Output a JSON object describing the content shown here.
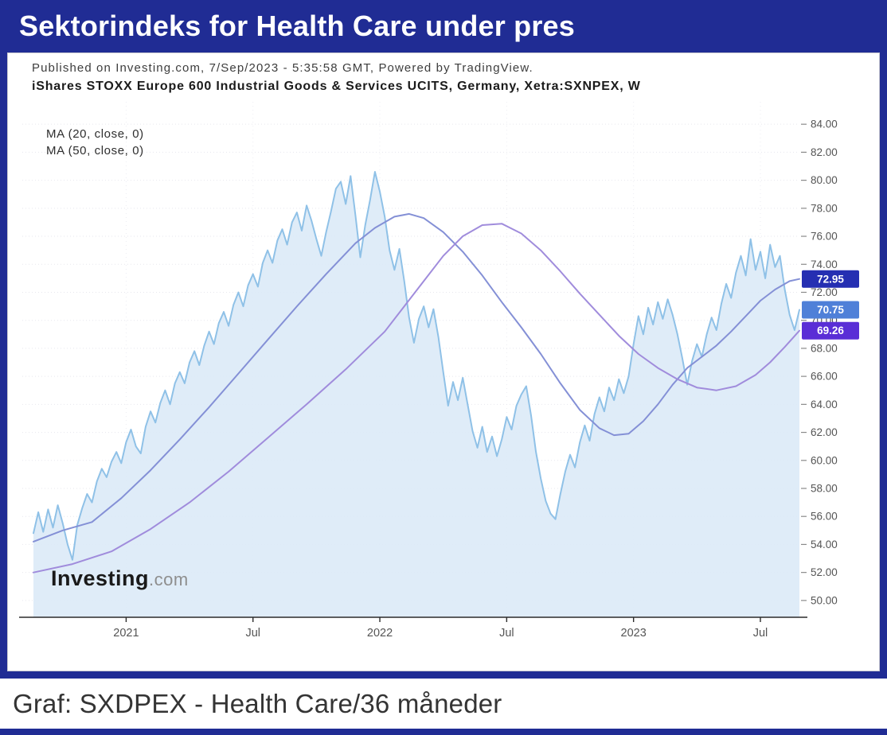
{
  "title_bar": {
    "title": "Sektorindeks for Health Care under pres"
  },
  "chart_header": {
    "published_line": "Published on Investing.com, 7/Sep/2023 - 5:35:58 GMT, Powered by TradingView.",
    "instrument_line": "iShares STOXX Europe 600 Industrial Goods & Services UCITS, Germany, Xetra:SXNPEX, W",
    "ma_legend": [
      "MA (20, close, 0)",
      "MA (50, close, 0)"
    ]
  },
  "watermark": {
    "bold": "Investing",
    "suffix": ".com"
  },
  "caption": "Graf: SXDPEX - Health Care/36 måneder",
  "accent_color": "#202c94",
  "chart_data": {
    "type": "area",
    "timeframe": "weekly",
    "x_unit": "week_index",
    "xlabel": "",
    "ylabel": "",
    "ylim": [
      48.8,
      85.6
    ],
    "grid": true,
    "y_gridlines": [
      50,
      52,
      54,
      56,
      58,
      60,
      62,
      64,
      66,
      68,
      70,
      72,
      74,
      76,
      78,
      80,
      82,
      84
    ],
    "x_ticks": [
      {
        "label": "2021",
        "week": 19
      },
      {
        "label": "Jul",
        "week": 45
      },
      {
        "label": "2022",
        "week": 71
      },
      {
        "label": "Jul",
        "week": 97
      },
      {
        "label": "2023",
        "week": 123
      },
      {
        "label": "Jul",
        "week": 149
      }
    ],
    "series": [
      {
        "name": "SXNPEX weekly close",
        "kind": "area",
        "color": "#8fc1e7",
        "fill": "#dbeaf7",
        "last_value": 70.75,
        "values": [
          54.8,
          56.3,
          54.9,
          56.5,
          55.2,
          56.8,
          55.5,
          54.0,
          52.9,
          55.4,
          56.6,
          57.6,
          57.0,
          58.5,
          59.4,
          58.8,
          59.9,
          60.6,
          59.8,
          61.3,
          62.2,
          61.0,
          60.5,
          62.4,
          63.5,
          62.7,
          64.1,
          65.0,
          64.0,
          65.5,
          66.3,
          65.5,
          67.0,
          67.8,
          66.8,
          68.2,
          69.2,
          68.3,
          69.8,
          70.6,
          69.6,
          71.1,
          72.0,
          71.0,
          72.5,
          73.3,
          72.4,
          74.1,
          75.0,
          74.1,
          75.7,
          76.5,
          75.4,
          77.0,
          77.7,
          76.4,
          78.2,
          77.1,
          75.8,
          74.6,
          76.3,
          77.8,
          79.4,
          79.9,
          78.3,
          80.3,
          77.5,
          74.5,
          76.8,
          78.6,
          80.6,
          79.2,
          77.4,
          75.0,
          73.6,
          75.1,
          72.8,
          70.2,
          68.4,
          70.1,
          71.0,
          69.5,
          70.8,
          68.8,
          66.3,
          63.9,
          65.6,
          64.3,
          65.9,
          64.0,
          62.1,
          60.9,
          62.4,
          60.6,
          61.7,
          60.3,
          61.5,
          63.1,
          62.2,
          63.9,
          64.7,
          65.3,
          63.2,
          60.6,
          58.7,
          57.1,
          56.2,
          55.8,
          57.6,
          59.2,
          60.4,
          59.5,
          61.3,
          62.5,
          61.4,
          63.3,
          64.5,
          63.5,
          65.2,
          64.3,
          65.8,
          64.8,
          66.0,
          68.3,
          70.3,
          69.0,
          70.9,
          69.7,
          71.3,
          70.1,
          71.5,
          70.4,
          69.0,
          67.3,
          65.4,
          67.1,
          68.3,
          67.4,
          69.0,
          70.2,
          69.3,
          71.2,
          72.6,
          71.6,
          73.4,
          74.6,
          73.2,
          75.8,
          73.6,
          74.9,
          73.0,
          75.4,
          73.8,
          74.6,
          72.2,
          70.4,
          69.3,
          70.75
        ]
      },
      {
        "name": "MA (20, close, 0)",
        "kind": "line",
        "color": "#8490d6",
        "last_value": 72.95,
        "points": [
          [
            0,
            54.2
          ],
          [
            6,
            55.0
          ],
          [
            12,
            55.6
          ],
          [
            18,
            57.3
          ],
          [
            24,
            59.3
          ],
          [
            30,
            61.5
          ],
          [
            36,
            63.8
          ],
          [
            42,
            66.2
          ],
          [
            48,
            68.6
          ],
          [
            54,
            71.0
          ],
          [
            60,
            73.3
          ],
          [
            66,
            75.5
          ],
          [
            70,
            76.6
          ],
          [
            74,
            77.4
          ],
          [
            77,
            77.6
          ],
          [
            80,
            77.3
          ],
          [
            84,
            76.3
          ],
          [
            88,
            74.9
          ],
          [
            92,
            73.2
          ],
          [
            96,
            71.3
          ],
          [
            100,
            69.5
          ],
          [
            104,
            67.6
          ],
          [
            108,
            65.5
          ],
          [
            112,
            63.6
          ],
          [
            116,
            62.3
          ],
          [
            119,
            61.8
          ],
          [
            122,
            61.9
          ],
          [
            125,
            62.8
          ],
          [
            128,
            64.0
          ],
          [
            131,
            65.4
          ],
          [
            134,
            66.6
          ],
          [
            137,
            67.4
          ],
          [
            140,
            68.2
          ],
          [
            143,
            69.2
          ],
          [
            146,
            70.3
          ],
          [
            149,
            71.4
          ],
          [
            152,
            72.2
          ],
          [
            155,
            72.8
          ],
          [
            157,
            72.95
          ]
        ]
      },
      {
        "name": "MA (50, close, 0)",
        "kind": "line",
        "color": "#a08cdc",
        "last_value": 69.26,
        "points": [
          [
            0,
            52.0
          ],
          [
            8,
            52.6
          ],
          [
            16,
            53.5
          ],
          [
            24,
            55.1
          ],
          [
            32,
            57.0
          ],
          [
            40,
            59.2
          ],
          [
            48,
            61.6
          ],
          [
            56,
            64.0
          ],
          [
            64,
            66.5
          ],
          [
            72,
            69.2
          ],
          [
            76,
            71.0
          ],
          [
            80,
            72.8
          ],
          [
            84,
            74.6
          ],
          [
            88,
            76.0
          ],
          [
            92,
            76.8
          ],
          [
            96,
            76.9
          ],
          [
            100,
            76.2
          ],
          [
            104,
            75.0
          ],
          [
            108,
            73.5
          ],
          [
            112,
            71.9
          ],
          [
            116,
            70.4
          ],
          [
            120,
            68.9
          ],
          [
            124,
            67.6
          ],
          [
            128,
            66.6
          ],
          [
            132,
            65.8
          ],
          [
            136,
            65.2
          ],
          [
            140,
            65.0
          ],
          [
            144,
            65.3
          ],
          [
            148,
            66.1
          ],
          [
            151,
            67.0
          ],
          [
            154,
            68.1
          ],
          [
            157,
            69.26
          ]
        ]
      }
    ],
    "price_badges": [
      {
        "label": "72.95",
        "value": 72.95,
        "color": "#252fb2"
      },
      {
        "label": "70.75",
        "value": 70.75,
        "color": "#4f80d8"
      },
      {
        "label": "69.26",
        "value": 69.26,
        "color": "#5a2ed6"
      }
    ]
  }
}
